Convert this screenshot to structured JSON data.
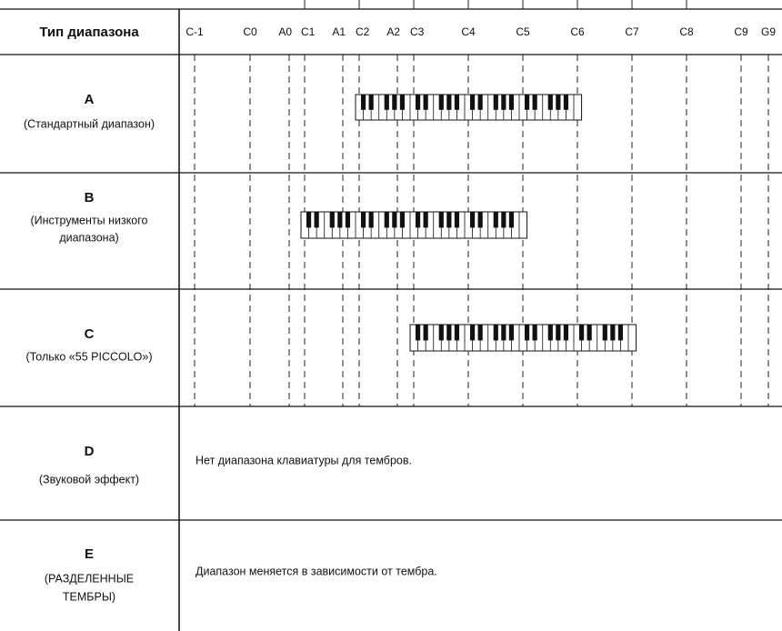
{
  "header": {
    "title": "Тип диапазона",
    "notes": [
      "C-1",
      "C0",
      "A0",
      "C1",
      "A1",
      "C2",
      "A2",
      "C3",
      "C4",
      "C5",
      "C6",
      "C7",
      "C8",
      "C9",
      "G9"
    ]
  },
  "rows": [
    {
      "letter": "A",
      "label": [
        "(Стандартный диапазон)"
      ]
    },
    {
      "letter": "B",
      "label": [
        "(Инструменты низкого",
        "диапазона)"
      ]
    },
    {
      "letter": "C",
      "label": [
        "(Только «55 PICCOLO»)"
      ]
    },
    {
      "letter": "D",
      "label": [
        "(Звуковой эффект)"
      ],
      "text": "Нет диапазона клавиатуры для тембров."
    },
    {
      "letter": "E",
      "label": [
        "(РАЗДЕЛЕННЫЕ",
        "ТЕМБРЫ)"
      ],
      "text": "Диапазон меняется в зависимости от тембра."
    }
  ]
}
